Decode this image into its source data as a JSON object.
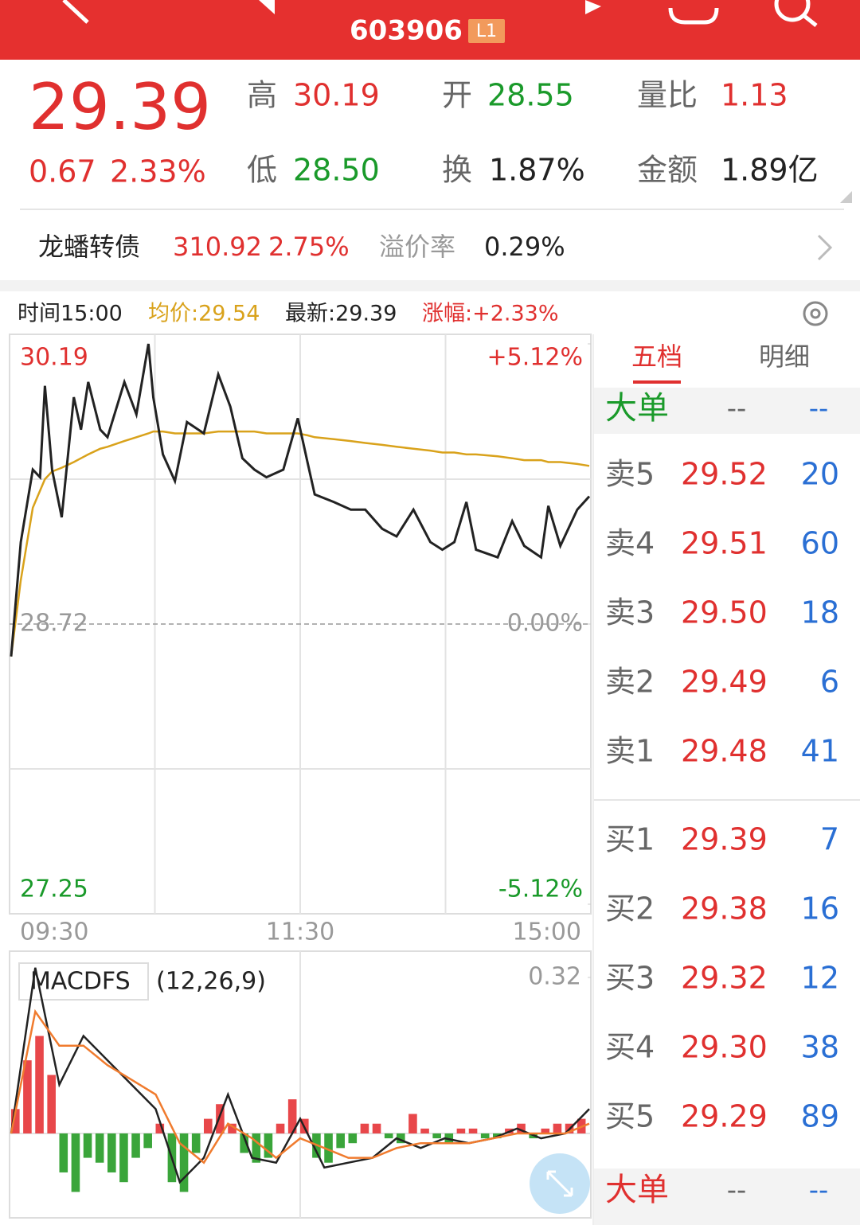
{
  "header": {
    "code": "603906",
    "badge": "L1"
  },
  "quote": {
    "price": "29.39",
    "change": "0.67",
    "change_pct": "2.33%",
    "items": [
      [
        "高",
        "30.19"
      ],
      [
        "开",
        "28.55"
      ],
      [
        "量比",
        "1.13"
      ],
      [
        "低",
        "28.50"
      ],
      [
        "换",
        "1.87%"
      ],
      [
        "金额",
        "1.89亿"
      ]
    ]
  },
  "bond": {
    "name": "龙蟠转债",
    "price": "310.92",
    "change_pct": "2.75%",
    "premium_label": "溢价率",
    "premium": "0.29%"
  },
  "info": [
    "时间15:00",
    "均价:29.54",
    "最新:29.39",
    "涨幅:+2.33%"
  ],
  "chart_data": [
    {
      "type": "line",
      "x": [
        0,
        4,
        9,
        12,
        14,
        17,
        21,
        26,
        29,
        32,
        37,
        40,
        47,
        52,
        57,
        59,
        63,
        68,
        73,
        80,
        86,
        91,
        96,
        101,
        106,
        113,
        119,
        123,
        126,
        134,
        141,
        147,
        154,
        160,
        167,
        174,
        179,
        184,
        189,
        193,
        202,
        208,
        213,
        220,
        223,
        228,
        235,
        240
      ],
      "series": [
        {
          "color": "#222222",
          "values": [
            28.55,
            29.15,
            29.53,
            29.49,
            29.97,
            29.53,
            29.28,
            29.91,
            29.74,
            29.99,
            29.74,
            29.7,
            29.99,
            29.82,
            30.19,
            29.91,
            29.61,
            29.47,
            29.78,
            29.72,
            30.03,
            29.86,
            29.59,
            29.53,
            29.49,
            29.53,
            29.8,
            29.57,
            29.4,
            29.36,
            29.32,
            29.32,
            29.22,
            29.18,
            29.32,
            29.15,
            29.11,
            29.15,
            29.36,
            29.11,
            29.07,
            29.26,
            29.13,
            29.07,
            29.34,
            29.13,
            29.32,
            29.39
          ]
        },
        {
          "color": "#d9a21b",
          "values": [
            28.55,
            28.95,
            29.33,
            29.42,
            29.48,
            29.52,
            29.54,
            29.57,
            29.59,
            29.61,
            29.64,
            29.65,
            29.68,
            29.7,
            29.72,
            29.73,
            29.73,
            29.72,
            29.72,
            29.72,
            29.73,
            29.73,
            29.73,
            29.73,
            29.72,
            29.72,
            29.72,
            29.71,
            29.7,
            29.69,
            29.68,
            29.67,
            29.66,
            29.65,
            29.64,
            29.63,
            29.62,
            29.62,
            29.61,
            29.61,
            29.6,
            29.59,
            29.58,
            29.58,
            29.57,
            29.57,
            29.56,
            29.55
          ]
        }
      ],
      "xlim": [
        0,
        240
      ],
      "xticks": [
        {
          "value": 0,
          "label": "09:30"
        },
        {
          "value": 120,
          "label": "11:30"
        },
        {
          "value": 240,
          "label": "15:00"
        }
      ],
      "ylim": [
        27.25,
        30.19
      ],
      "yticks": [
        30.19,
        28.72,
        27.25
      ],
      "y2lim": [
        -5.12,
        5.12
      ],
      "y2ticks": [
        {
          "value": 5.12,
          "label": "+5.12%"
        },
        {
          "value": 0,
          "label": "0.00%"
        },
        {
          "value": -5.12,
          "label": "-5.12%"
        }
      ]
    },
    {
      "type": "macd",
      "title": "MACDFS",
      "subtitle": "(12,26,9)",
      "x": [
        0,
        5,
        10,
        15,
        20,
        25,
        30,
        35,
        40,
        45,
        50,
        55,
        60,
        65,
        70,
        75,
        80,
        85,
        90,
        95,
        100,
        105,
        110,
        115,
        120,
        125,
        130,
        135,
        140,
        145,
        150,
        155,
        160,
        165,
        170,
        175,
        180,
        185,
        190,
        195,
        200,
        205,
        210,
        215,
        220,
        225,
        230,
        235
      ],
      "values": [
        0.05,
        0.15,
        0.2,
        0.12,
        -0.08,
        -0.12,
        -0.05,
        -0.06,
        -0.08,
        -0.1,
        -0.05,
        -0.03,
        0.02,
        -0.1,
        -0.12,
        -0.04,
        0.03,
        0.06,
        0.02,
        -0.04,
        -0.06,
        -0.05,
        0.02,
        0.07,
        0.03,
        -0.05,
        -0.06,
        -0.03,
        -0.02,
        0.02,
        0.02,
        -0.01,
        -0.02,
        0.04,
        0.01,
        -0.01,
        -0.02,
        0.01,
        0.01,
        -0.01,
        -0.01,
        0.01,
        0.02,
        -0.01,
        0.01,
        0.02,
        0.02,
        0.03
      ],
      "colors": {
        "up": "#e8474a",
        "down": "#3aa53a"
      },
      "series": [
        {
          "color": "#222222",
          "x": [
            0,
            10,
            20,
            30,
            40,
            50,
            60,
            70,
            80,
            90,
            100,
            110,
            120,
            130,
            140,
            150,
            160,
            170,
            180,
            190,
            200,
            210,
            220,
            230,
            240
          ],
          "values": [
            0.0,
            0.34,
            0.1,
            0.2,
            0.15,
            0.1,
            0.05,
            -0.1,
            -0.05,
            0.08,
            -0.05,
            -0.06,
            0.03,
            -0.07,
            -0.06,
            -0.05,
            -0.01,
            -0.03,
            -0.01,
            -0.02,
            -0.01,
            0.01,
            -0.01,
            0.0,
            0.05
          ]
        },
        {
          "color": "#f07b2e",
          "x": [
            0,
            10,
            20,
            30,
            40,
            50,
            60,
            70,
            80,
            90,
            100,
            110,
            120,
            130,
            140,
            150,
            160,
            170,
            180,
            190,
            200,
            210,
            220,
            230,
            240
          ],
          "values": [
            0.0,
            0.25,
            0.18,
            0.18,
            0.14,
            0.11,
            0.08,
            -0.02,
            -0.06,
            0.02,
            -0.01,
            -0.05,
            -0.01,
            -0.03,
            -0.05,
            -0.05,
            -0.03,
            -0.02,
            -0.02,
            -0.02,
            -0.01,
            0.0,
            0.0,
            0.0,
            0.02
          ]
        }
      ],
      "xlim": [
        0,
        240
      ],
      "ylim": [
        -0.165,
        0.369
      ],
      "yticks": [
        0.32
      ]
    }
  ],
  "order_book": {
    "tabs": [
      "五档",
      "明细"
    ],
    "top_big": [
      "大单",
      "--",
      "--"
    ],
    "sell": [
      [
        "卖5",
        "29.52",
        "20"
      ],
      [
        "卖4",
        "29.51",
        "60"
      ],
      [
        "卖3",
        "29.50",
        "18"
      ],
      [
        "卖2",
        "29.49",
        "6"
      ],
      [
        "卖1",
        "29.48",
        "41"
      ]
    ],
    "buy": [
      [
        "买1",
        "29.39",
        "7"
      ],
      [
        "买2",
        "29.38",
        "16"
      ],
      [
        "买3",
        "29.32",
        "12"
      ],
      [
        "买4",
        "29.30",
        "38"
      ],
      [
        "买5",
        "29.29",
        "89"
      ]
    ],
    "bottom_big": [
      "大单",
      "--",
      "--"
    ]
  }
}
